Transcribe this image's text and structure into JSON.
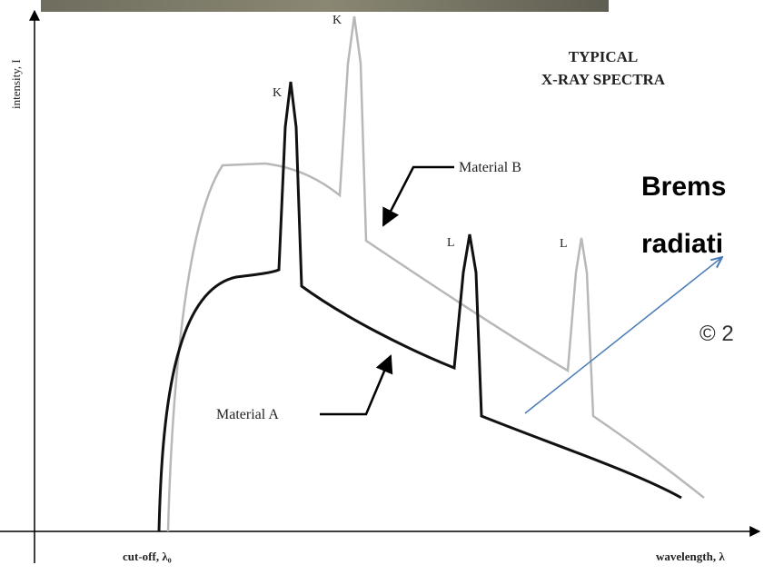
{
  "axes": {
    "y_label": "intensity, I",
    "x_origin_label": "cut-off, λ₀",
    "x_label": "wavelength, λ"
  },
  "title": {
    "line1": "TYPICAL",
    "line2": "X-RAY SPECTRA"
  },
  "peaks": {
    "a_k": "K",
    "b_k": "K",
    "a_l": "L",
    "b_l": "L"
  },
  "curves": {
    "material_a": "Material A",
    "material_b": "Material B"
  },
  "overlay": {
    "line1": "Brems",
    "line2": "radiati",
    "copyright": "© 2"
  }
}
